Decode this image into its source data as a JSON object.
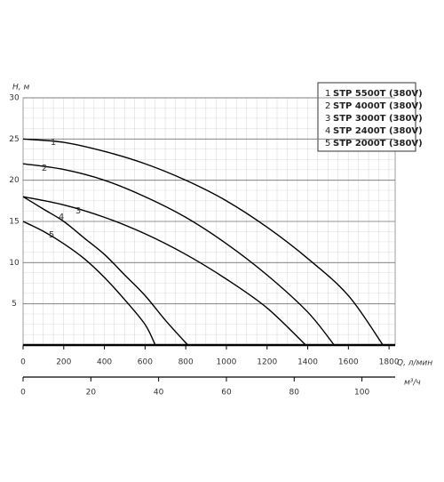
{
  "chart_data": {
    "type": "line",
    "y_label": "H, м",
    "x_label": "Q, л/мин",
    "x2_label": "м³/ч",
    "xlim": [
      0,
      1830
    ],
    "xticks": [
      0,
      200,
      400,
      600,
      800,
      1000,
      1200,
      1400,
      1600,
      1800
    ],
    "x2lim": [
      0,
      109.8
    ],
    "x2ticks": [
      0,
      20,
      40,
      60,
      80,
      100
    ],
    "ylim": [
      0,
      30
    ],
    "yticks": [
      5,
      10,
      15,
      20,
      25,
      30
    ],
    "grid": true,
    "series": [
      {
        "label": "1",
        "name": "STP 5500T (380V)",
        "color": "#000000",
        "x": [
          0,
          200,
          400,
          600,
          800,
          1000,
          1200,
          1400,
          1600,
          1770
        ],
        "values": [
          25,
          24.6,
          23.5,
          22,
          20,
          17.5,
          14.3,
          10.5,
          6,
          0
        ]
      },
      {
        "label": "2",
        "name": "STP 4000T (380V)",
        "color": "#000000",
        "x": [
          0,
          200,
          400,
          600,
          800,
          1000,
          1200,
          1400,
          1530
        ],
        "values": [
          22,
          21.3,
          20,
          18,
          15.5,
          12.3,
          8.5,
          4,
          0
        ]
      },
      {
        "label": "3",
        "name": "STP 3000T (380V)",
        "color": "#000000",
        "x": [
          0,
          200,
          400,
          600,
          800,
          1000,
          1200,
          1390
        ],
        "values": [
          18,
          17,
          15.5,
          13.5,
          11,
          8,
          4.5,
          0
        ]
      },
      {
        "label": "4",
        "name": "STP 2400T (380V)",
        "color": "#000000",
        "x": [
          0,
          100,
          200,
          300,
          400,
          500,
          600,
          700,
          810
        ],
        "values": [
          18,
          16.5,
          15,
          13,
          11,
          8.5,
          6,
          3,
          0
        ]
      },
      {
        "label": "5",
        "name": "STP 2000T (380V)",
        "color": "#000000",
        "x": [
          0,
          100,
          200,
          300,
          400,
          500,
          600,
          650
        ],
        "values": [
          15,
          13.8,
          12.3,
          10.5,
          8.2,
          5.5,
          2.5,
          0
        ]
      }
    ]
  }
}
